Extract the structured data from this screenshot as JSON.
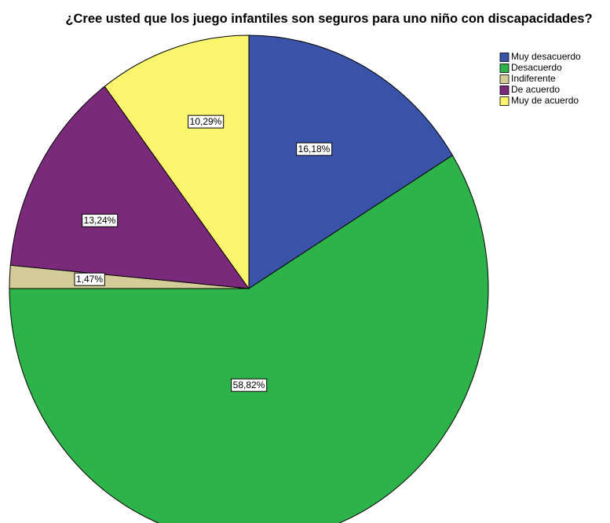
{
  "chart_data": {
    "type": "pie",
    "title": "¿Cree usted que los juego infantiles son seguros para uno niño con discapacidades?",
    "categories": [
      "Muy desacuerdo",
      "Desacuerdo",
      "Indiferente",
      "De acuerdo",
      "Muy de acuerdo"
    ],
    "values": [
      16.18,
      58.82,
      1.47,
      13.24,
      10.29
    ],
    "value_labels": [
      "16,18%",
      "58,82%",
      "1,47%",
      "13,24%",
      "10,29%"
    ],
    "colors": [
      "#3953a8",
      "#2db34a",
      "#d4cc98",
      "#7b2a7b",
      "#fbf66e"
    ],
    "legend": "upper right"
  }
}
